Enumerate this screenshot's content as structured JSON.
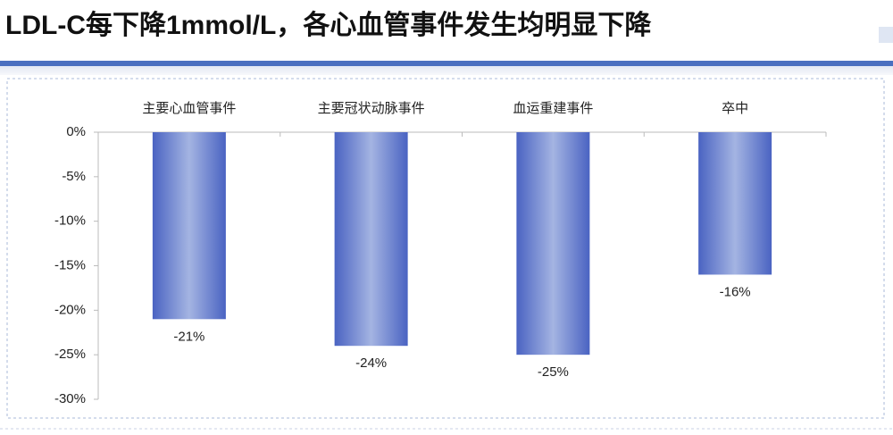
{
  "chart_data": {
    "type": "bar",
    "title": "LDL-C每下降1mmol/L，各心血管事件发生均明显下降",
    "categories": [
      "主要心血管事件",
      "主要冠状动脉事件",
      "血运重建事件",
      "卒中"
    ],
    "values": [
      -21,
      -24,
      -25,
      -16
    ],
    "value_labels": [
      "-21%",
      "-24%",
      "-25%",
      "-16%"
    ],
    "color": "#4a63c2",
    "ylim": [
      -30,
      0
    ],
    "yticks": [
      {
        "value": 0,
        "label": "0%"
      },
      {
        "value": -5,
        "label": "-5%"
      },
      {
        "value": -10,
        "label": "-10%"
      },
      {
        "value": -15,
        "label": "-15%"
      },
      {
        "value": -20,
        "label": "-20%"
      },
      {
        "value": -25,
        "label": "-25%"
      },
      {
        "value": -30,
        "label": "-30%"
      }
    ],
    "grid": false
  }
}
